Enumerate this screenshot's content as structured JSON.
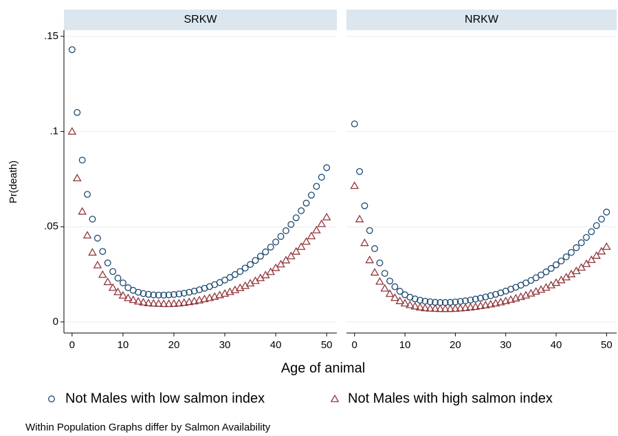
{
  "chart_data": [
    {
      "type": "scatter",
      "title": "SRKW",
      "x": [
        0,
        1,
        2,
        3,
        4,
        5,
        6,
        7,
        8,
        9,
        10,
        11,
        12,
        13,
        14,
        15,
        16,
        17,
        18,
        19,
        20,
        21,
        22,
        23,
        24,
        25,
        26,
        27,
        28,
        29,
        30,
        31,
        32,
        33,
        34,
        35,
        36,
        37,
        38,
        39,
        40,
        41,
        42,
        43,
        44,
        45,
        46,
        47,
        48,
        49,
        50
      ],
      "series": [
        {
          "name": "Not Males with low salmon index",
          "color": "#1a476f",
          "marker": "circle",
          "values": [
            0.143,
            0.11,
            0.085,
            0.067,
            0.054,
            0.044,
            0.037,
            0.031,
            0.0265,
            0.023,
            0.0205,
            0.018,
            0.0166,
            0.0156,
            0.0149,
            0.0145,
            0.0142,
            0.0141,
            0.0141,
            0.0142,
            0.0144,
            0.0147,
            0.0151,
            0.0156,
            0.0162,
            0.0169,
            0.0177,
            0.0186,
            0.0196,
            0.0207,
            0.022,
            0.0234,
            0.0249,
            0.0265,
            0.0283,
            0.0302,
            0.0323,
            0.0345,
            0.0368,
            0.0393,
            0.042,
            0.0449,
            0.0479,
            0.0512,
            0.0547,
            0.0584,
            0.0624,
            0.0666,
            0.0712,
            0.076,
            0.081
          ]
        },
        {
          "name": "Not Males with high salmon index",
          "color": "#90353b",
          "marker": "triangle",
          "values": [
            0.1,
            0.0755,
            0.058,
            0.0455,
            0.0365,
            0.0298,
            0.0248,
            0.021,
            0.018,
            0.0157,
            0.0139,
            0.0126,
            0.0116,
            0.0108,
            0.0103,
            0.0099,
            0.0097,
            0.0096,
            0.0095,
            0.0095,
            0.0096,
            0.0098,
            0.0101,
            0.0105,
            0.0109,
            0.0114,
            0.012,
            0.0126,
            0.0133,
            0.0141,
            0.0149,
            0.0158,
            0.0168,
            0.0179,
            0.019,
            0.0203,
            0.0216,
            0.0231,
            0.0246,
            0.0263,
            0.0284,
            0.0303,
            0.0324,
            0.0346,
            0.037,
            0.0395,
            0.0422,
            0.0451,
            0.0482,
            0.0515,
            0.055
          ]
        }
      ],
      "xlim": [
        -1.6,
        52
      ],
      "ylim": [
        -0.0058,
        0.1532
      ],
      "xticks": [
        0,
        10,
        20,
        30,
        40,
        50
      ],
      "yticks": [
        0,
        {
          "value": 0.05,
          "label": ".05"
        },
        {
          "value": 0.1,
          "label": ".1"
        },
        {
          "value": 0.15,
          "label": ".15"
        }
      ],
      "grid": true
    },
    {
      "type": "scatter",
      "title": "NRKW",
      "x": [
        0,
        1,
        2,
        3,
        4,
        5,
        6,
        7,
        8,
        9,
        10,
        11,
        12,
        13,
        14,
        15,
        16,
        17,
        18,
        19,
        20,
        21,
        22,
        23,
        24,
        25,
        26,
        27,
        28,
        29,
        30,
        31,
        32,
        33,
        34,
        35,
        36,
        37,
        38,
        39,
        40,
        41,
        42,
        43,
        44,
        45,
        46,
        47,
        48,
        49,
        50
      ],
      "series": [
        {
          "color": "#1a476f",
          "marker": "circle",
          "values": [
            0.104,
            0.079,
            0.061,
            0.048,
            0.0385,
            0.031,
            0.0255,
            0.0215,
            0.0185,
            0.0161,
            0.0143,
            0.013,
            0.0121,
            0.0114,
            0.0109,
            0.0106,
            0.0103,
            0.0102,
            0.0102,
            0.0103,
            0.0105,
            0.0108,
            0.0111,
            0.0115,
            0.012,
            0.0125,
            0.0131,
            0.0138,
            0.0145,
            0.0153,
            0.0162,
            0.0172,
            0.0182,
            0.0193,
            0.0205,
            0.0218,
            0.0232,
            0.0247,
            0.0263,
            0.0281,
            0.03,
            0.032,
            0.0342,
            0.0365,
            0.039,
            0.0416,
            0.0444,
            0.0474,
            0.0506,
            0.054,
            0.0577
          ]
        },
        {
          "color": "#90353b",
          "marker": "triangle",
          "values": [
            0.0715,
            0.054,
            0.0415,
            0.0325,
            0.026,
            0.0212,
            0.0176,
            0.0148,
            0.0127,
            0.011,
            0.0098,
            0.0089,
            0.0082,
            0.0077,
            0.0073,
            0.0071,
            0.007,
            0.0069,
            0.0069,
            0.0069,
            0.007,
            0.0072,
            0.0074,
            0.0077,
            0.008,
            0.0084,
            0.0088,
            0.0093,
            0.0098,
            0.0104,
            0.011,
            0.0117,
            0.0124,
            0.0132,
            0.014,
            0.015,
            0.016,
            0.017,
            0.0181,
            0.0193,
            0.0206,
            0.022,
            0.0235,
            0.0251,
            0.0268,
            0.0286,
            0.0305,
            0.0326,
            0.0348,
            0.0371,
            0.0395
          ]
        }
      ],
      "xlim": [
        -1.6,
        52
      ],
      "ylim": [
        -0.0058,
        0.1532
      ],
      "xticks": [
        0,
        10,
        20,
        30,
        40,
        50
      ],
      "yticks": [
        0,
        0.05,
        0.1,
        0.15
      ],
      "grid": true
    }
  ],
  "xlabel": "Age of animal",
  "ylabel": "Pr(death)",
  "legend": "bottom",
  "note": "Within Population Graphs differ by Salmon Availability"
}
